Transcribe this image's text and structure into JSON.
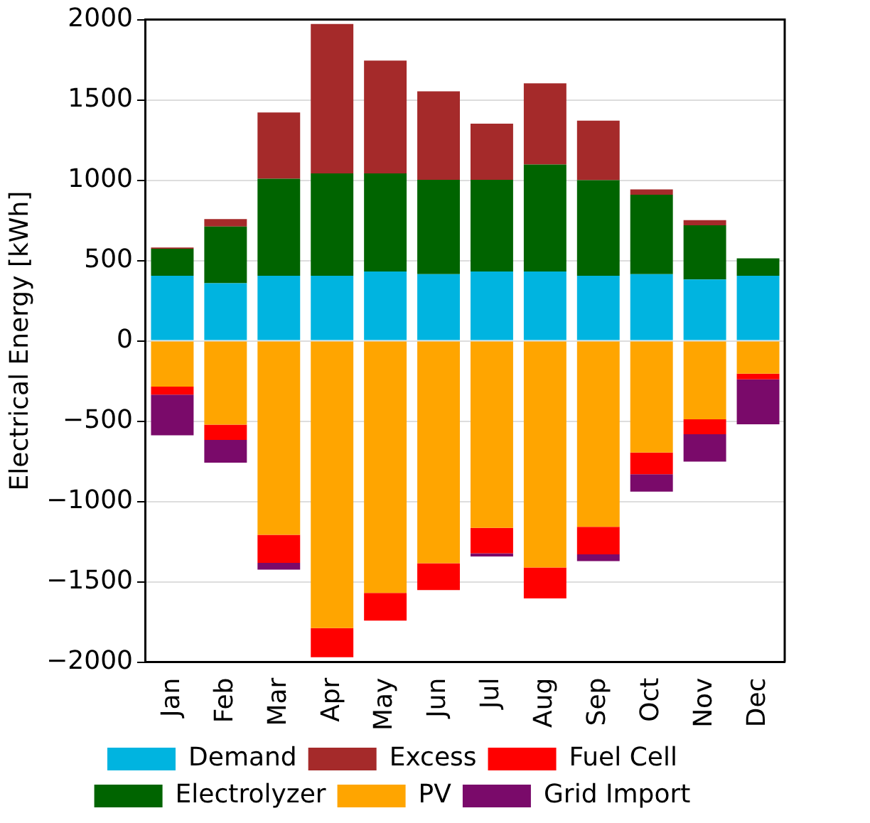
{
  "chart_data": {
    "type": "bar",
    "ylabel": "Electrical Energy [kWh]",
    "categories": [
      "Jan",
      "Feb",
      "Mar",
      "Apr",
      "May",
      "Jun",
      "Jul",
      "Aug",
      "Sep",
      "Oct",
      "Nov",
      "Dec"
    ],
    "stacked": true,
    "series": [
      {
        "name": "Demand",
        "color": "#00b4e0",
        "values": [
          405,
          359,
          405,
          405,
          432,
          415,
          432,
          432,
          405,
          415,
          382,
          405
        ]
      },
      {
        "name": "Electrolyzer",
        "color": "#006400",
        "values": [
          168,
          353,
          604,
          637,
          610,
          588,
          571,
          666,
          595,
          495,
          337,
          109
        ]
      },
      {
        "name": "Excess",
        "color": "#a52a2a",
        "values": [
          8,
          46,
          413,
          931,
          703,
          550,
          349,
          505,
          371,
          33,
          32,
          0
        ]
      },
      {
        "name": "PV",
        "color": "#ffa500",
        "values": [
          -285,
          -522,
          -1208,
          -1788,
          -1569,
          -1385,
          -1165,
          -1411,
          -1158,
          -695,
          -489,
          -204
        ]
      },
      {
        "name": "Fuel Cell",
        "color": "#ff0000",
        "values": [
          -50,
          -95,
          -174,
          -182,
          -173,
          -167,
          -158,
          -193,
          -171,
          -135,
          -92,
          -36
        ]
      },
      {
        "name": "Grid Import",
        "color": "#7a0a6a",
        "values": [
          -253,
          -141,
          -42,
          0,
          0,
          0,
          -20,
          0,
          -42,
          -109,
          -171,
          -279
        ]
      }
    ],
    "ylim": [
      -2000,
      2000
    ],
    "yticks": [
      -2000,
      -1500,
      -1000,
      -500,
      0,
      500,
      1000,
      1500,
      2000
    ],
    "grid": "y",
    "legend": "bottom"
  }
}
